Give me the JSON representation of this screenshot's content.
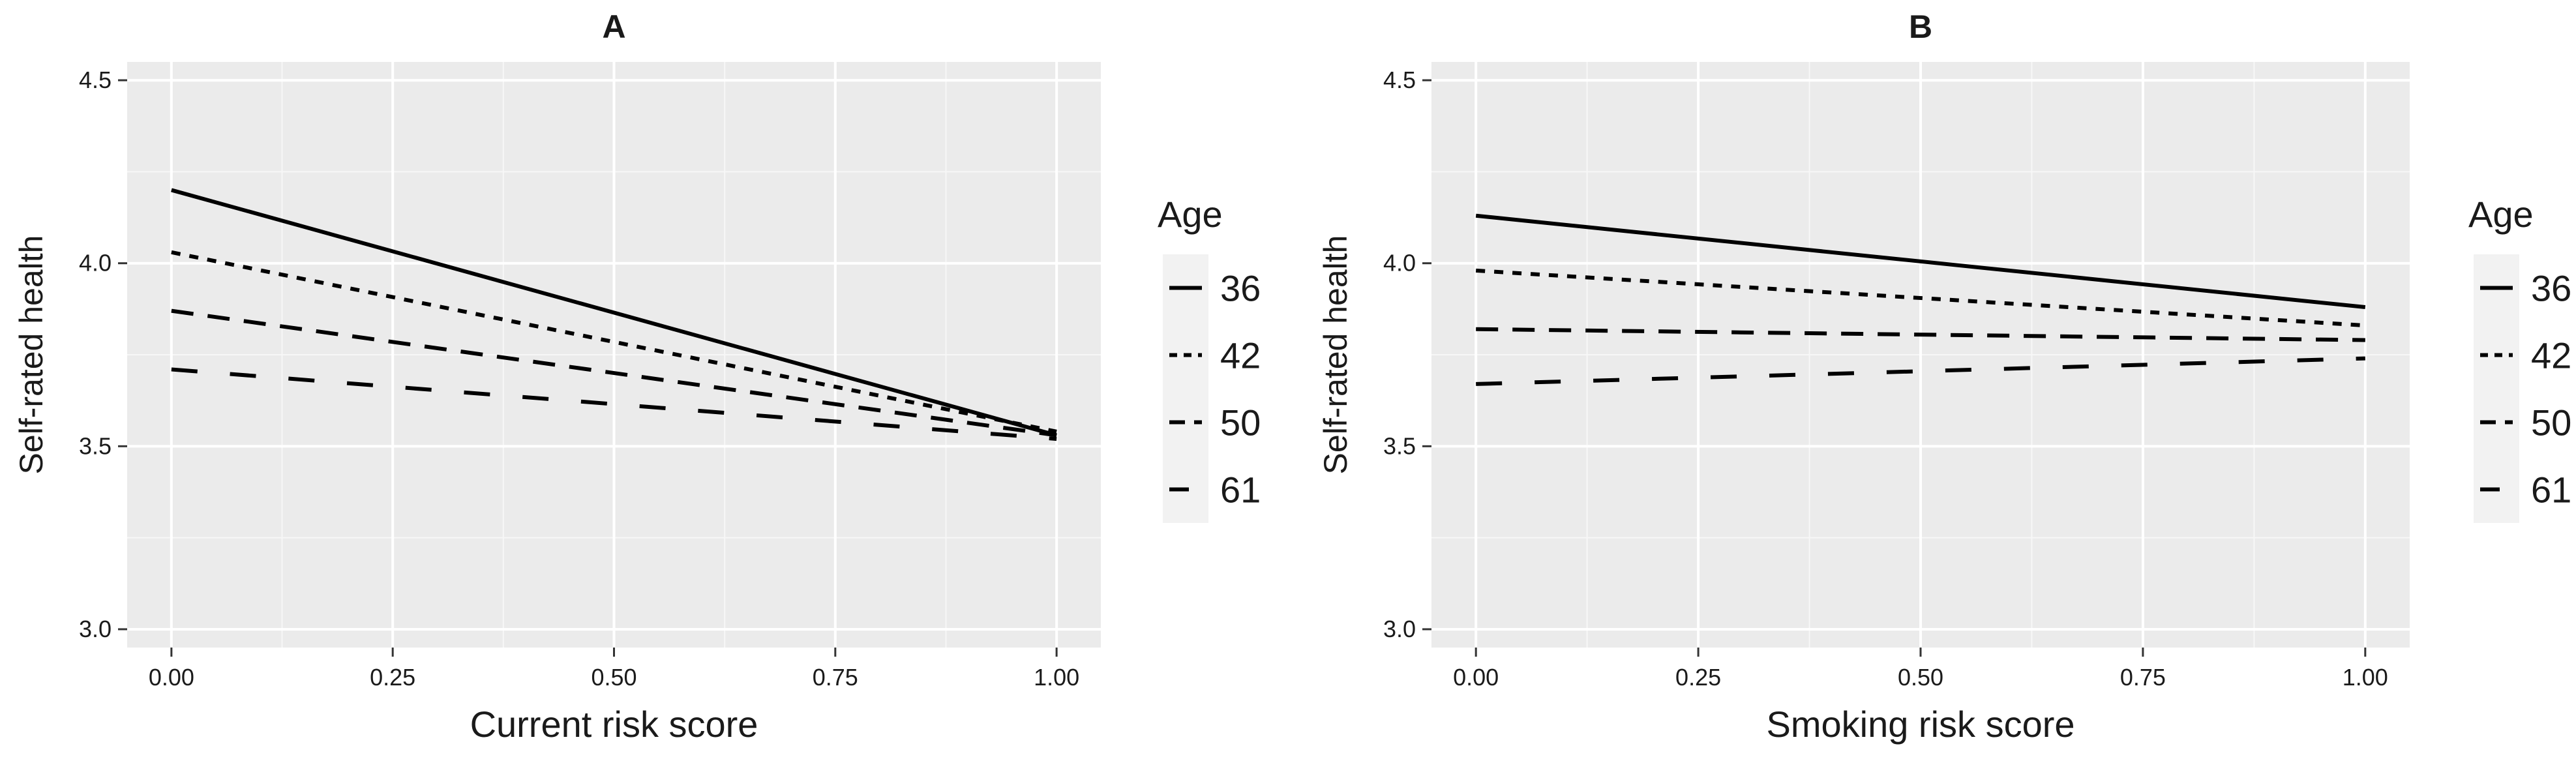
{
  "chart_data": [
    {
      "type": "line",
      "title": "A",
      "xlabel": "Current risk score",
      "ylabel": "Self-rated health",
      "xlim": [
        -0.05,
        1.05
      ],
      "ylim": [
        2.95,
        4.55
      ],
      "xticks": [
        0.0,
        0.25,
        0.5,
        0.75,
        1.0
      ],
      "xtick_labels": [
        "0.00",
        "0.25",
        "0.50",
        "0.75",
        "1.00"
      ],
      "yticks": [
        3.0,
        3.5,
        4.0,
        4.5
      ],
      "ytick_labels": [
        "3.0",
        "3.5",
        "4.0",
        "4.5"
      ],
      "grid": true,
      "legend": {
        "title": "Age",
        "position": "right"
      },
      "series": [
        {
          "name": "36",
          "x": [
            0.0,
            1.0
          ],
          "y": [
            4.2,
            3.53
          ]
        },
        {
          "name": "42",
          "x": [
            0.0,
            1.0
          ],
          "y": [
            4.03,
            3.54
          ]
        },
        {
          "name": "50",
          "x": [
            0.0,
            1.0
          ],
          "y": [
            3.87,
            3.53
          ]
        },
        {
          "name": "61",
          "x": [
            0.0,
            1.0
          ],
          "y": [
            3.71,
            3.52
          ]
        }
      ]
    },
    {
      "type": "line",
      "title": "B",
      "xlabel": "Smoking risk score",
      "ylabel": "Self-rated health",
      "xlim": [
        -0.05,
        1.05
      ],
      "ylim": [
        2.95,
        4.55
      ],
      "xticks": [
        0.0,
        0.25,
        0.5,
        0.75,
        1.0
      ],
      "xtick_labels": [
        "0.00",
        "0.25",
        "0.50",
        "0.75",
        "1.00"
      ],
      "yticks": [
        3.0,
        3.5,
        4.0,
        4.5
      ],
      "ytick_labels": [
        "3.0",
        "3.5",
        "4.0",
        "4.5"
      ],
      "grid": true,
      "legend": {
        "title": "Age",
        "position": "right"
      },
      "series": [
        {
          "name": "36",
          "x": [
            0.0,
            1.0
          ],
          "y": [
            4.13,
            3.88
          ]
        },
        {
          "name": "42",
          "x": [
            0.0,
            1.0
          ],
          "y": [
            3.98,
            3.83
          ]
        },
        {
          "name": "50",
          "x": [
            0.0,
            1.0
          ],
          "y": [
            3.82,
            3.79
          ]
        },
        {
          "name": "61",
          "x": [
            0.0,
            1.0
          ],
          "y": [
            3.67,
            3.74
          ]
        }
      ]
    }
  ]
}
